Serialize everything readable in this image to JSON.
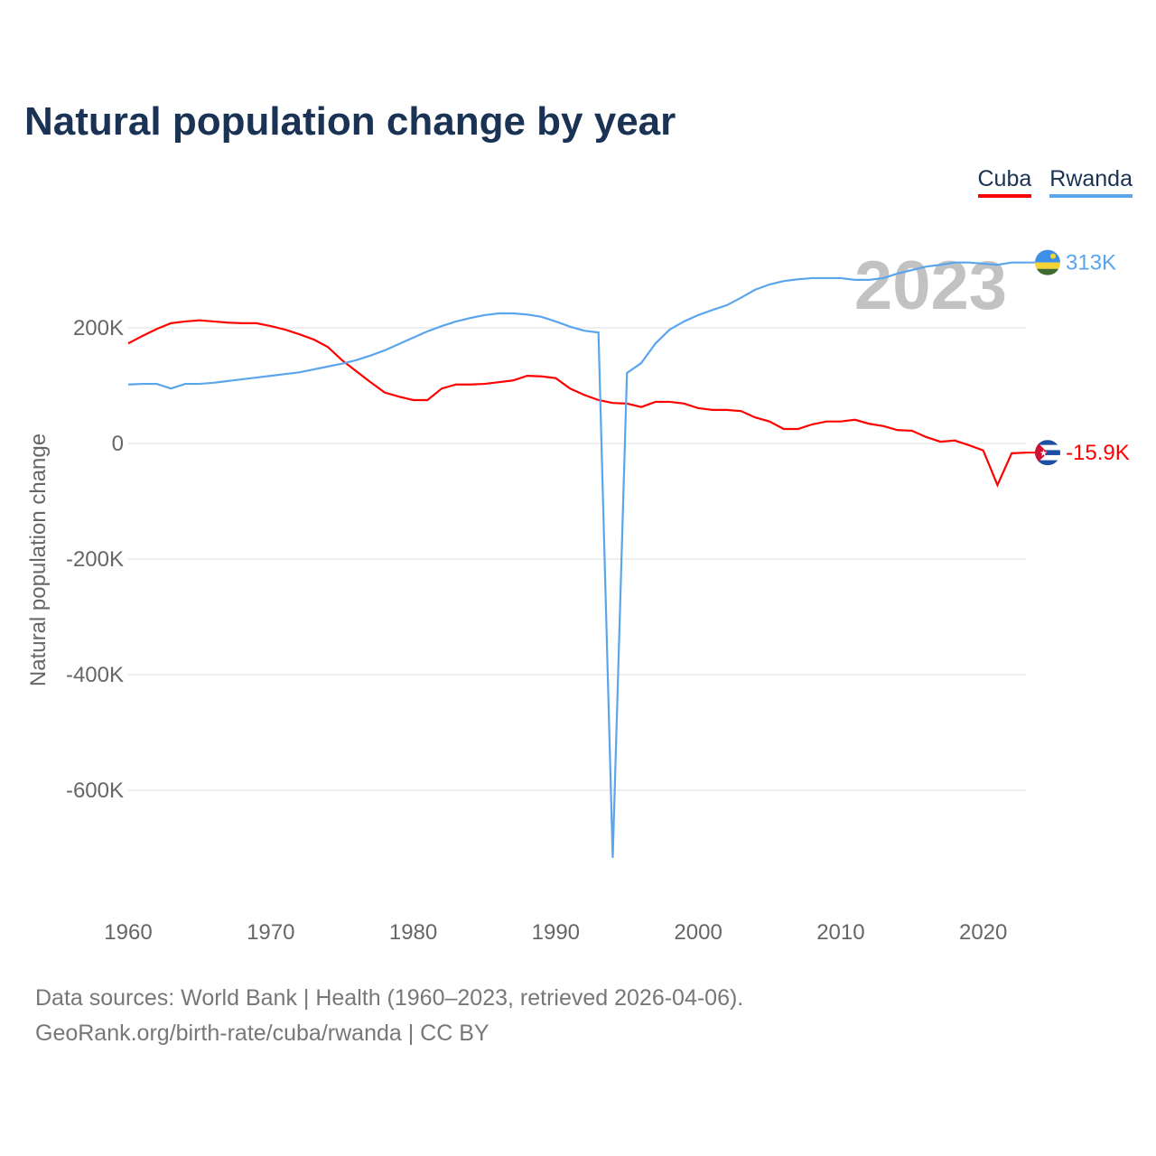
{
  "title": "Natural population change by year",
  "legend": [
    {
      "label": "Cuba",
      "color": "#ff0000"
    },
    {
      "label": "Rwanda",
      "color": "#5aa5ec"
    }
  ],
  "footer": {
    "line1": "Data sources: World Bank | Health (1960–2023, retrieved 2026-04-06).",
    "line2": "GeoRank.org/birth-rate/cuba/rwanda | CC BY"
  },
  "chart_data": {
    "type": "line",
    "title": "Natural population change by year",
    "xlabel": "",
    "ylabel": "Natural population change",
    "year_watermark": "2023",
    "xlim": [
      1960,
      2023
    ],
    "ylim": [
      -800,
      400
    ],
    "y_unit": "thousands",
    "x_ticks": [
      1960,
      1970,
      1980,
      1990,
      2000,
      2010,
      2020
    ],
    "y_ticks": [
      {
        "v": 200,
        "label": "200K"
      },
      {
        "v": 0,
        "label": "0"
      },
      {
        "v": -200,
        "label": "-200K"
      },
      {
        "v": -400,
        "label": "-400K"
      },
      {
        "v": -600,
        "label": "-600K"
      }
    ],
    "grid": true,
    "legend_position": "top-right",
    "x": [
      1960,
      1961,
      1962,
      1963,
      1964,
      1965,
      1966,
      1967,
      1968,
      1969,
      1970,
      1971,
      1972,
      1973,
      1974,
      1975,
      1976,
      1977,
      1978,
      1979,
      1980,
      1981,
      1982,
      1983,
      1984,
      1985,
      1986,
      1987,
      1988,
      1989,
      1990,
      1991,
      1992,
      1993,
      1994,
      1995,
      1996,
      1997,
      1998,
      1999,
      2000,
      2001,
      2002,
      2003,
      2004,
      2005,
      2006,
      2007,
      2008,
      2009,
      2010,
      2011,
      2012,
      2013,
      2014,
      2015,
      2016,
      2017,
      2018,
      2019,
      2020,
      2021,
      2022,
      2023
    ],
    "series": [
      {
        "name": "Cuba",
        "color": "#ff0000",
        "end_label": "-15.9K",
        "values": [
          173,
          186,
          198,
          208,
          211,
          213,
          211,
          209,
          208,
          208,
          203,
          197,
          189,
          180,
          167,
          144,
          125,
          106,
          88,
          81,
          75,
          75,
          95,
          102,
          102,
          103,
          106,
          109,
          117,
          116,
          113,
          95,
          84,
          75,
          70,
          69,
          63,
          72,
          72,
          69,
          61,
          58,
          58,
          56,
          45,
          38,
          25,
          25,
          33,
          38,
          38,
          41,
          34,
          30,
          23,
          22,
          11,
          3,
          5,
          -3,
          -12,
          -72,
          -17,
          -15.9
        ]
      },
      {
        "name": "Rwanda",
        "color": "#5aa5ec",
        "end_label": "313K",
        "values": [
          102,
          103,
          103,
          95,
          103,
          103,
          105,
          108,
          111,
          114,
          117,
          120,
          123,
          128,
          133,
          138,
          144,
          152,
          161,
          172,
          183,
          194,
          203,
          211,
          217,
          222,
          225,
          225,
          223,
          219,
          211,
          202,
          195,
          192,
          -717,
          122,
          139,
          173,
          197,
          211,
          222,
          231,
          239,
          252,
          266,
          275,
          281,
          284,
          286,
          286,
          286,
          283,
          283,
          286,
          294,
          300,
          306,
          309,
          313,
          313,
          311,
          309,
          313,
          313
        ]
      }
    ]
  }
}
